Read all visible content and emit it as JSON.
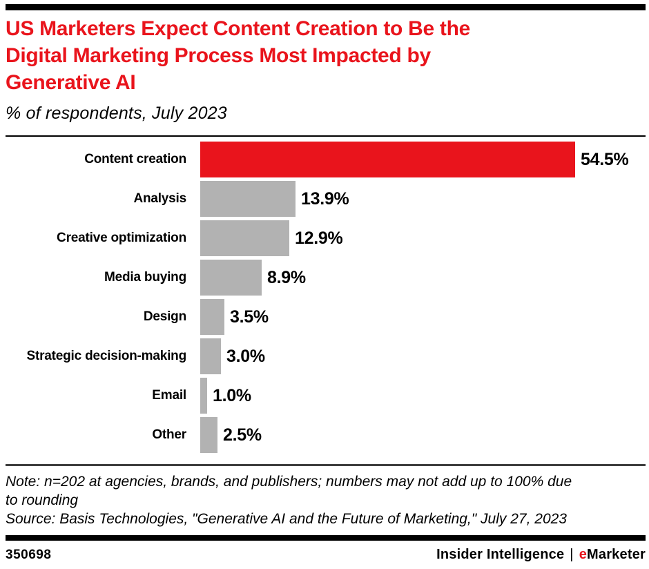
{
  "header": {
    "title_lines": [
      "US Marketers Expect Content Creation to Be the",
      "Digital Marketing Process Most Impacted by",
      "Generative AI"
    ],
    "title": "US Marketers Expect Content Creation to Be the Digital Marketing Process Most Impacted by Generative AI",
    "subtitle": "% of respondents, July 2023"
  },
  "chart_data": {
    "type": "bar",
    "orientation": "horizontal",
    "title": "US Marketers Expect Content Creation to Be the Digital Marketing Process Most Impacted by Generative AI",
    "subtitle": "% of respondents, July 2023",
    "categories": [
      "Content creation",
      "Analysis",
      "Creative optimization",
      "Media buying",
      "Design",
      "Strategic decision-making",
      "Email",
      "Other"
    ],
    "values": [
      54.5,
      13.9,
      12.9,
      8.9,
      3.5,
      3.0,
      1.0,
      2.5
    ],
    "value_labels": [
      "54.5%",
      "13.9%",
      "12.9%",
      "8.9%",
      "3.5%",
      "3.0%",
      "1.0%",
      "2.5%"
    ],
    "highlight_index": 0,
    "xlim": [
      0,
      64.7
    ],
    "grid": false,
    "legend": false,
    "value_label_position": "end-of-bar"
  },
  "notes": {
    "note_lines": [
      "Note: n=202 at agencies, brands, and publishers; numbers may not add up to 100% due",
      "to rounding"
    ],
    "source": "Source: Basis Technologies, \"Generative AI and the Future of Marketing,\" July 27, 2023"
  },
  "footer": {
    "chart_id": "350698",
    "brand_left": "Insider Intelligence",
    "brand_separator": "|",
    "brand_e": "e",
    "brand_rest": "Marketer"
  },
  "colors": {
    "accent_red": "#E9141C",
    "bar_gray": "#B2B2B2",
    "divider_dark": "#3E3E3E",
    "black": "#000000",
    "background": "#FFFFFF"
  }
}
